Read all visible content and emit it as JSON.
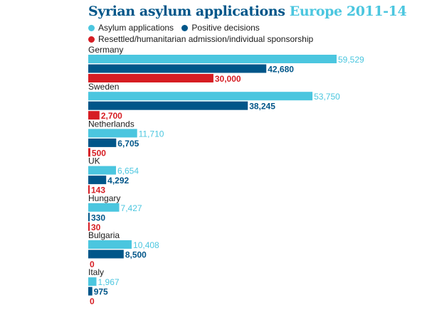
{
  "title": {
    "main": "Syrian asylum applications",
    "sub": "Europe 2011-14"
  },
  "legend": [
    {
      "label": "Asylum applications",
      "color": "#4bc6df"
    },
    {
      "label": "Positive decisions",
      "color": "#005689"
    },
    {
      "label": "Resettled/humanitarian admission/individual sponsorship",
      "color": "#d61d23"
    }
  ],
  "chart_data": {
    "type": "bar",
    "orientation": "horizontal",
    "title": "Syrian asylum applications Europe 2011-14",
    "xlim": [
      0,
      59529
    ],
    "categories": [
      "Germany",
      "Sweden",
      "Netherlands",
      "UK",
      "Hungary",
      "Bulgaria",
      "Italy"
    ],
    "series": [
      {
        "name": "Asylum applications",
        "color": "#4bc6df",
        "values": [
          59529,
          53750,
          11710,
          6654,
          7427,
          10408,
          1967
        ],
        "labels": [
          "59,529",
          "53,750",
          "11,710",
          "6,654",
          "7,427",
          "10,408",
          "1,967"
        ]
      },
      {
        "name": "Positive decisions",
        "color": "#005689",
        "values": [
          42680,
          38245,
          6705,
          4292,
          330,
          8500,
          975
        ],
        "labels": [
          "42,680",
          "38,245",
          "6,705",
          "4,292",
          "330",
          "8,500",
          "975"
        ]
      },
      {
        "name": "Resettled/humanitarian admission/individual sponsorship",
        "color": "#d61d23",
        "values": [
          30000,
          2700,
          500,
          143,
          30,
          0,
          0
        ],
        "labels": [
          "30,000",
          "2,700",
          "500",
          "143",
          "30",
          "0",
          "0"
        ]
      }
    ],
    "grid": false,
    "legend_position": "top-left"
  }
}
